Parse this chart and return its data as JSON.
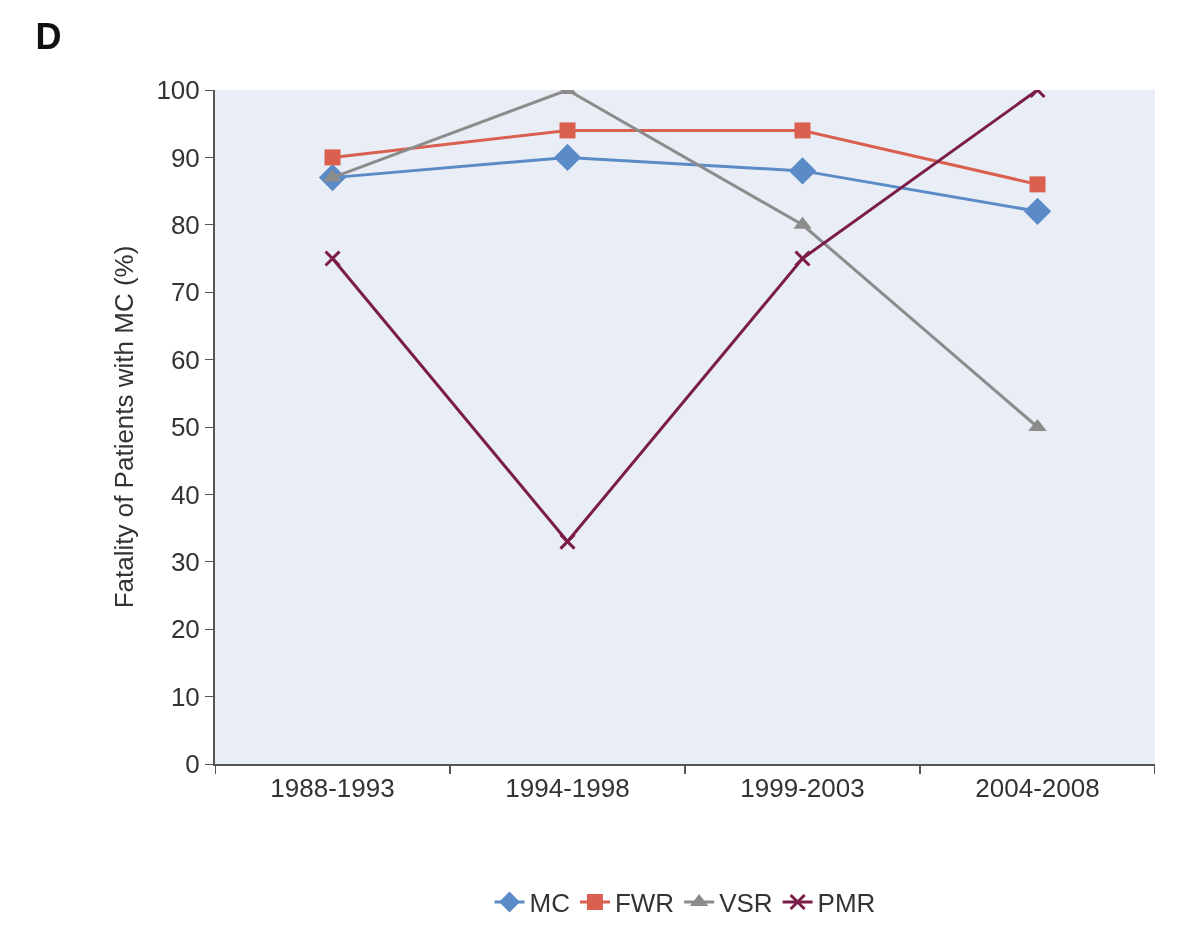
{
  "chart_data": {
    "type": "line",
    "title": "D",
    "ylabel": "Fatality of Patients with MC (%)",
    "categories": [
      "1988-1993",
      "1994-1998",
      "1999-2003",
      "2004-2008"
    ],
    "series": [
      {
        "name": "MC",
        "color": "#5b8bc6",
        "marker": "diamond",
        "values": [
          87,
          90,
          88,
          82
        ]
      },
      {
        "name": "FWR",
        "color": "#d9604f",
        "marker": "square",
        "values": [
          90,
          94,
          94,
          86
        ]
      },
      {
        "name": "VSR",
        "color": "#8c8c8c",
        "marker": "triangle",
        "values": [
          87,
          100,
          80,
          50
        ]
      },
      {
        "name": "PMR",
        "color": "#7b1d48",
        "marker": "cross",
        "values": [
          75,
          33,
          75,
          100
        ]
      }
    ],
    "ylim": [
      0,
      100
    ],
    "yticks": [
      0,
      10,
      20,
      30,
      40,
      50,
      60,
      70,
      80,
      90,
      100
    ],
    "grid": false,
    "legend": "bottom",
    "line_style": "solid"
  }
}
